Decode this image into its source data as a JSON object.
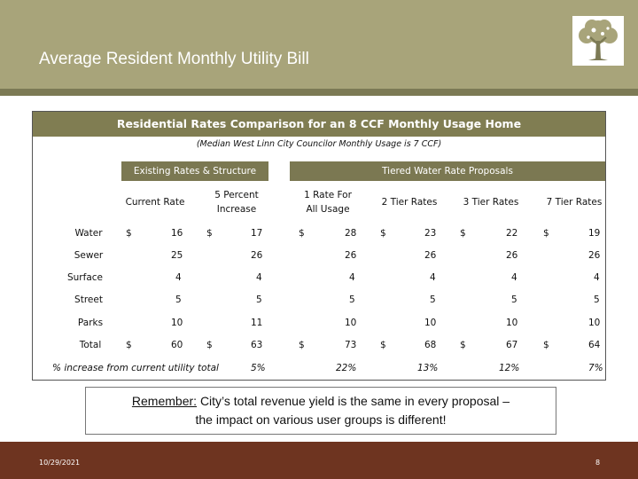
{
  "slide": {
    "title": "Average Resident Monthly Utility Bill",
    "date": "10/29/2021",
    "page": "8"
  },
  "table": {
    "title": "Residential Rates Comparison for an 8 CCF Monthly Usage Home",
    "subtitle": "(Median West Linn City Councilor Monthly Usage is 7 CCF)",
    "group_existing": "Existing Rates & Structure",
    "group_tiered": "Tiered Water Rate Proposals",
    "columns": [
      "Current Rate",
      "5 Percent Increase",
      "1 Rate For All Usage",
      "2 Tier Rates",
      "3 Tier Rates",
      "7 Tier Rates"
    ],
    "rows": [
      {
        "label": "Water",
        "values": [
          "16",
          "17",
          "28",
          "23",
          "22",
          "19"
        ],
        "dollar": true
      },
      {
        "label": "Sewer",
        "values": [
          "25",
          "26",
          "26",
          "26",
          "26",
          "26"
        ],
        "dollar": false
      },
      {
        "label": "Surface",
        "values": [
          "4",
          "4",
          "4",
          "4",
          "4",
          "4"
        ],
        "dollar": false
      },
      {
        "label": "Street",
        "values": [
          "5",
          "5",
          "5",
          "5",
          "5",
          "5"
        ],
        "dollar": false
      },
      {
        "label": "Parks",
        "values": [
          "10",
          "11",
          "10",
          "10",
          "10",
          "10"
        ],
        "dollar": false
      },
      {
        "label": "Total",
        "values": [
          "60",
          "63",
          "73",
          "68",
          "67",
          "64"
        ],
        "dollar": true
      }
    ],
    "dollar_sign": "$",
    "pct_label": "% increase from current utility total",
    "pct_values": [
      "5%",
      "22%",
      "13%",
      "12%",
      "7%"
    ]
  },
  "note": {
    "lead": "Remember:",
    "line1": "City’s total revenue yield is the same in every proposal –",
    "line2": "the impact on various user groups is different!"
  },
  "colors": {
    "header": "#a8a47a",
    "table_title_bg": "#807d52",
    "footer": "#6e3420"
  }
}
